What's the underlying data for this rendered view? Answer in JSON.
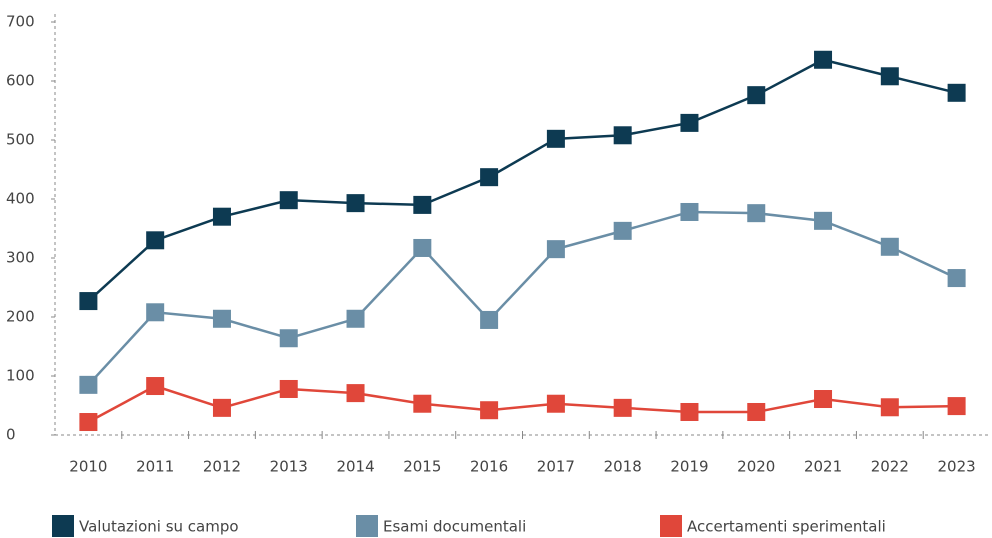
{
  "chart_data": {
    "type": "line",
    "categories": [
      "2010",
      "2011",
      "2012",
      "2013",
      "2014",
      "2015",
      "2016",
      "2017",
      "2018",
      "2019",
      "2020",
      "2021",
      "2022",
      "2023"
    ],
    "series": [
      {
        "name": "Valutazioni su campo",
        "color": "#0d3a52",
        "values": [
          227,
          330,
          370,
          398,
          393,
          390,
          437,
          502,
          508,
          529,
          576,
          636,
          608,
          580
        ]
      },
      {
        "name": "Esami documentali",
        "color": "#6a8ea6",
        "values": [
          85,
          208,
          197,
          164,
          197,
          317,
          195,
          315,
          346,
          378,
          376,
          363,
          319,
          266
        ]
      },
      {
        "name": "Accertamenti sperimentali",
        "color": "#e0473a",
        "values": [
          22,
          83,
          46,
          78,
          71,
          53,
          42,
          53,
          46,
          39,
          39,
          61,
          47,
          49
        ]
      }
    ],
    "ylim": [
      0,
      700
    ],
    "yticks": [
      0,
      100,
      200,
      300,
      400,
      500,
      600,
      700
    ]
  }
}
